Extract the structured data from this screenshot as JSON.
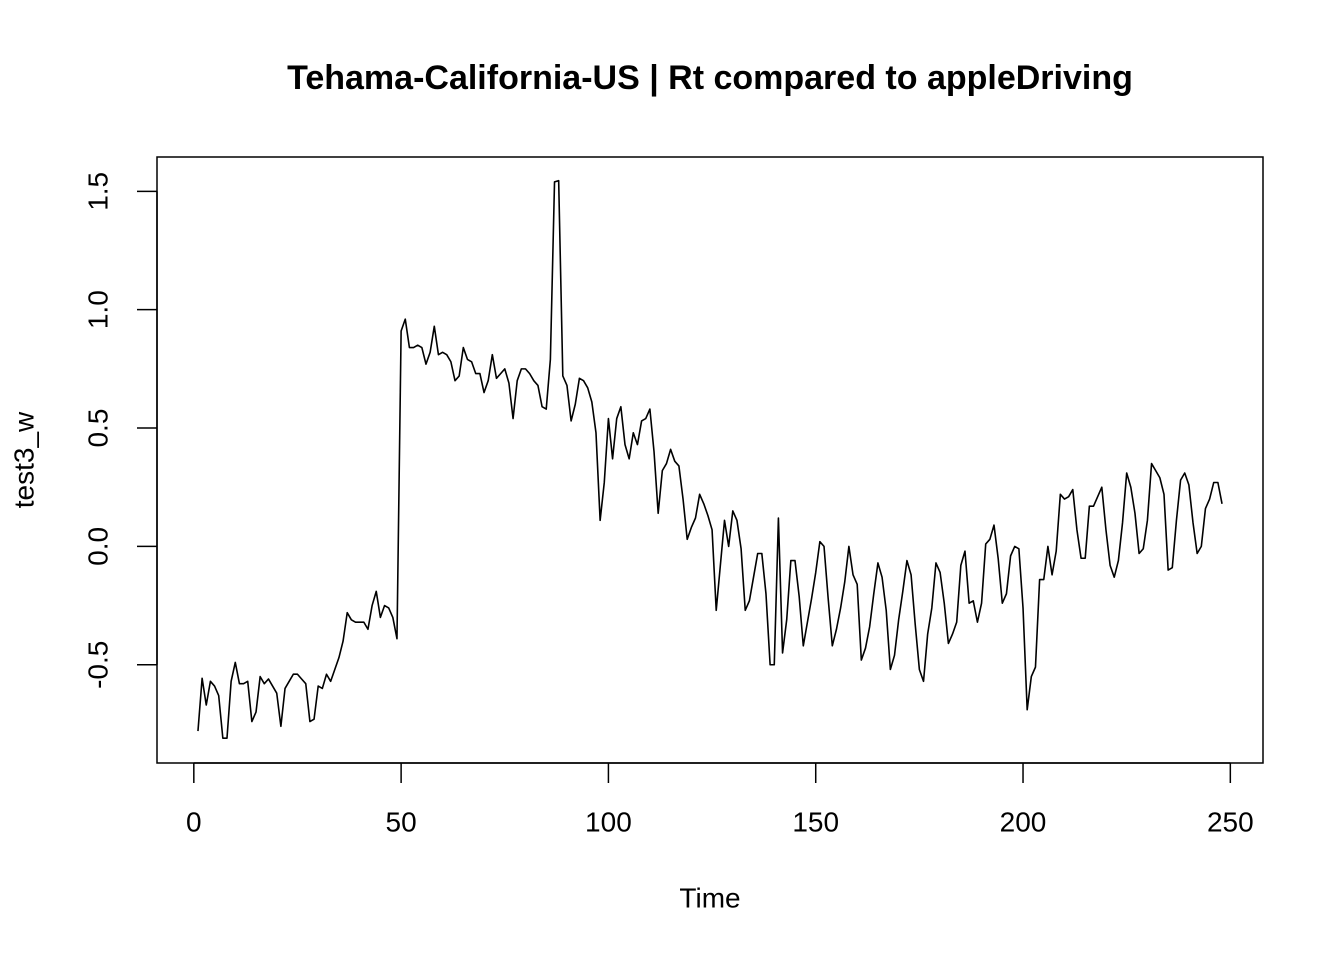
{
  "chart_data": {
    "type": "line",
    "title": "Tehama-California-US | Rt compared to appleDriving",
    "x_label": "Time",
    "y_label": "test3_w",
    "color": "#000000",
    "x": [
      1,
      2,
      3,
      4,
      5,
      6,
      7,
      8,
      9,
      10,
      11,
      12,
      13,
      14,
      15,
      16,
      17,
      18,
      19,
      20,
      21,
      22,
      23,
      24,
      25,
      26,
      27,
      28,
      29,
      30,
      31,
      32,
      33,
      34,
      35,
      36,
      37,
      38,
      39,
      40,
      41,
      42,
      43,
      44,
      45,
      46,
      47,
      48,
      49,
      50,
      51,
      52,
      53,
      54,
      55,
      56,
      57,
      58,
      59,
      60,
      61,
      62,
      63,
      64,
      65,
      66,
      67,
      68,
      69,
      70,
      71,
      72,
      73,
      74,
      75,
      76,
      77,
      78,
      79,
      80,
      81,
      82,
      83,
      84,
      85,
      86,
      87,
      88,
      89,
      90,
      91,
      92,
      93,
      94,
      95,
      96,
      97,
      98,
      99,
      100,
      101,
      102,
      103,
      104,
      105,
      106,
      107,
      108,
      109,
      110,
      111,
      112,
      113,
      114,
      115,
      116,
      117,
      118,
      119,
      120,
      121,
      122,
      123,
      124,
      125,
      126,
      127,
      128,
      129,
      130,
      131,
      132,
      133,
      134,
      135,
      136,
      137,
      138,
      139,
      140,
      141,
      142,
      143,
      144,
      145,
      146,
      147,
      148,
      149,
      150,
      151,
      152,
      153,
      154,
      155,
      156,
      157,
      158,
      159,
      160,
      161,
      162,
      163,
      164,
      165,
      166,
      167,
      168,
      169,
      170,
      171,
      172,
      173,
      174,
      175,
      176,
      177,
      178,
      179,
      180,
      181,
      182,
      183,
      184,
      185,
      186,
      187,
      188,
      189,
      190,
      191,
      192,
      193,
      194,
      195,
      196,
      197,
      198,
      199,
      200,
      201,
      202,
      203,
      204,
      205,
      206,
      207,
      208,
      209,
      210,
      211,
      212,
      213,
      214,
      215,
      216,
      217,
      218,
      219,
      220,
      221,
      222,
      223,
      224,
      225,
      226,
      227,
      228,
      229,
      230,
      231,
      232,
      233,
      234,
      235,
      236,
      237,
      238,
      239,
      240,
      241,
      242,
      243,
      244,
      245,
      246,
      247,
      248
    ],
    "values": [
      -0.78,
      -0.557,
      -0.67,
      -0.57,
      -0.59,
      -0.63,
      -0.81,
      -0.81,
      -0.57,
      -0.49,
      -0.58,
      -0.58,
      -0.57,
      -0.74,
      -0.7,
      -0.55,
      -0.58,
      -0.56,
      -0.59,
      -0.62,
      -0.76,
      -0.6,
      -0.57,
      -0.54,
      -0.54,
      -0.56,
      -0.58,
      -0.74,
      -0.73,
      -0.59,
      -0.6,
      -0.54,
      -0.57,
      -0.52,
      -0.47,
      -0.4,
      -0.28,
      -0.31,
      -0.32,
      -0.32,
      -0.32,
      -0.35,
      -0.25,
      -0.19,
      -0.3,
      -0.25,
      -0.26,
      -0.3,
      -0.39,
      0.91,
      0.96,
      0.84,
      0.84,
      0.85,
      0.84,
      0.77,
      0.82,
      0.93,
      0.81,
      0.82,
      0.81,
      0.78,
      0.7,
      0.72,
      0.84,
      0.79,
      0.78,
      0.73,
      0.73,
      0.65,
      0.7,
      0.81,
      0.71,
      0.73,
      0.75,
      0.69,
      0.54,
      0.7,
      0.75,
      0.75,
      0.73,
      0.7,
      0.68,
      0.59,
      0.58,
      0.79,
      1.54,
      1.545,
      0.72,
      0.68,
      0.53,
      0.6,
      0.71,
      0.7,
      0.67,
      0.61,
      0.48,
      0.11,
      0.27,
      0.54,
      0.37,
      0.54,
      0.59,
      0.43,
      0.37,
      0.48,
      0.43,
      0.53,
      0.54,
      0.58,
      0.4,
      0.14,
      0.32,
      0.35,
      0.41,
      0.36,
      0.34,
      0.2,
      0.03,
      0.08,
      0.12,
      0.22,
      0.18,
      0.13,
      0.07,
      -0.27,
      -0.08,
      0.11,
      0.0,
      0.15,
      0.11,
      -0.01,
      -0.27,
      -0.23,
      -0.13,
      -0.03,
      -0.03,
      -0.2,
      -0.5,
      -0.5,
      0.12,
      -0.45,
      -0.31,
      -0.06,
      -0.06,
      -0.21,
      -0.42,
      -0.32,
      -0.22,
      -0.11,
      0.02,
      0.0,
      -0.22,
      -0.42,
      -0.35,
      -0.26,
      -0.15,
      0.0,
      -0.12,
      -0.16,
      -0.48,
      -0.43,
      -0.34,
      -0.2,
      -0.07,
      -0.13,
      -0.27,
      -0.52,
      -0.46,
      -0.31,
      -0.19,
      -0.06,
      -0.12,
      -0.33,
      -0.52,
      -0.57,
      -0.37,
      -0.26,
      -0.07,
      -0.11,
      -0.24,
      -0.41,
      -0.37,
      -0.32,
      -0.08,
      -0.02,
      -0.24,
      -0.23,
      -0.32,
      -0.24,
      0.01,
      0.03,
      0.09,
      -0.05,
      -0.24,
      -0.2,
      -0.04,
      0.0,
      -0.01,
      -0.26,
      -0.69,
      -0.55,
      -0.51,
      -0.14,
      -0.14,
      0.0,
      -0.12,
      -0.02,
      0.22,
      0.2,
      0.21,
      0.24,
      0.07,
      -0.05,
      -0.05,
      0.17,
      0.17,
      0.21,
      0.25,
      0.07,
      -0.08,
      -0.13,
      -0.06,
      0.1,
      0.31,
      0.25,
      0.14,
      -0.03,
      -0.01,
      0.11,
      0.35,
      0.32,
      0.29,
      0.22,
      -0.1,
      -0.09,
      0.11,
      0.28,
      0.31,
      0.26,
      0.1,
      -0.03,
      0.0,
      0.16,
      0.2,
      0.27,
      0.27,
      0.18
    ],
    "xlim": [
      -8.88,
      257.88
    ],
    "ylim": [
      -0.915,
      1.645
    ],
    "xticks": [
      0,
      50,
      100,
      150,
      200,
      250
    ],
    "yticks": [
      -0.5,
      {
        "value": 0,
        "label": "0.0"
      },
      0.5,
      {
        "value": 1,
        "label": "1.0"
      },
      1.5
    ]
  }
}
